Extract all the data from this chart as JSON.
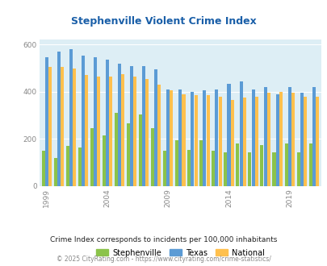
{
  "title": "Stephenville Violent Crime Index",
  "subtitle": "Crime Index corresponds to incidents per 100,000 inhabitants",
  "footer": "© 2025 CityRating.com - https://www.cityrating.com/crime-statistics/",
  "years": [
    1999,
    2000,
    2001,
    2002,
    2003,
    2004,
    2005,
    2006,
    2007,
    2008,
    2009,
    2010,
    2011,
    2012,
    2013,
    2014,
    2015,
    2016,
    2017,
    2018,
    2019,
    2020,
    2021
  ],
  "stephenville": [
    150,
    120,
    170,
    165,
    245,
    215,
    310,
    265,
    305,
    245,
    150,
    195,
    155,
    195,
    150,
    145,
    180,
    145,
    175,
    145,
    180,
    145,
    180
  ],
  "texas": [
    545,
    570,
    580,
    555,
    545,
    535,
    520,
    510,
    510,
    495,
    410,
    410,
    400,
    405,
    410,
    435,
    445,
    410,
    420,
    390,
    420,
    395,
    420
  ],
  "national": [
    505,
    505,
    500,
    470,
    465,
    465,
    475,
    465,
    455,
    430,
    405,
    390,
    385,
    385,
    380,
    365,
    375,
    380,
    395,
    400,
    395,
    380,
    380
  ],
  "colors": {
    "stephenville": "#8BC34A",
    "texas": "#5B9BD5",
    "national": "#FFC04D"
  },
  "bg_color": "#ddeef5",
  "ylim": [
    0,
    620
  ],
  "yticks": [
    0,
    200,
    400,
    600
  ],
  "xtick_labels": [
    "1999",
    "2004",
    "2009",
    "2014",
    "2019"
  ],
  "xtick_positions": [
    0,
    5,
    10,
    15,
    20
  ],
  "title_color": "#1a5fa8",
  "subtitle_color": "#222222",
  "footer_color": "#888888"
}
